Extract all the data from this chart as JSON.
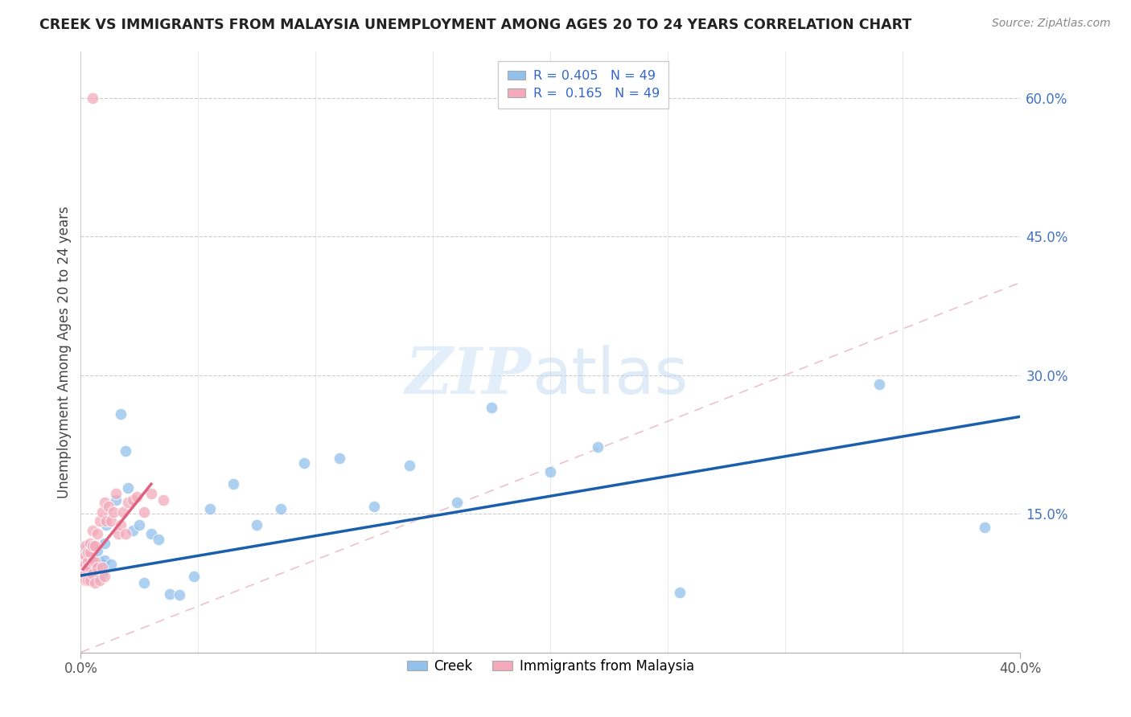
{
  "title": "CREEK VS IMMIGRANTS FROM MALAYSIA UNEMPLOYMENT AMONG AGES 20 TO 24 YEARS CORRELATION CHART",
  "source": "Source: ZipAtlas.com",
  "ylabel": "Unemployment Among Ages 20 to 24 years",
  "xlim": [
    0.0,
    0.4
  ],
  "ylim": [
    0.0,
    0.65
  ],
  "ytick_right_labels": [
    "60.0%",
    "45.0%",
    "30.0%",
    "15.0%"
  ],
  "ytick_right_values": [
    0.6,
    0.45,
    0.3,
    0.15
  ],
  "creek_color": "#92C1EB",
  "immigrant_color": "#F4AABB",
  "creek_line_color": "#1A5FAB",
  "immigrant_line_color": "#E06080",
  "diagonal_color": "#EAB8C0",
  "creek_R": 0.405,
  "creek_N": 49,
  "immigrant_R": 0.165,
  "immigrant_N": 49,
  "legend_labels": [
    "Creek",
    "Immigrants from Malaysia"
  ],
  "creek_x": [
    0.001,
    0.002,
    0.002,
    0.003,
    0.003,
    0.004,
    0.004,
    0.005,
    0.005,
    0.005,
    0.006,
    0.006,
    0.007,
    0.007,
    0.008,
    0.008,
    0.009,
    0.009,
    0.01,
    0.01,
    0.011,
    0.013,
    0.015,
    0.017,
    0.019,
    0.02,
    0.022,
    0.025,
    0.027,
    0.03,
    0.033,
    0.038,
    0.042,
    0.048,
    0.055,
    0.065,
    0.075,
    0.085,
    0.095,
    0.11,
    0.125,
    0.14,
    0.16,
    0.175,
    0.2,
    0.22,
    0.255,
    0.34,
    0.385
  ],
  "creek_y": [
    0.095,
    0.085,
    0.11,
    0.1,
    0.115,
    0.09,
    0.105,
    0.08,
    0.095,
    0.115,
    0.085,
    0.1,
    0.09,
    0.11,
    0.082,
    0.098,
    0.095,
    0.085,
    0.1,
    0.118,
    0.138,
    0.095,
    0.165,
    0.258,
    0.218,
    0.178,
    0.132,
    0.138,
    0.075,
    0.128,
    0.122,
    0.063,
    0.062,
    0.082,
    0.155,
    0.182,
    0.138,
    0.155,
    0.205,
    0.21,
    0.158,
    0.202,
    0.162,
    0.265,
    0.195,
    0.222,
    0.065,
    0.29,
    0.135
  ],
  "immigrant_x": [
    0.001,
    0.001,
    0.001,
    0.001,
    0.002,
    0.002,
    0.002,
    0.002,
    0.002,
    0.003,
    0.003,
    0.003,
    0.003,
    0.003,
    0.004,
    0.004,
    0.004,
    0.004,
    0.005,
    0.005,
    0.005,
    0.005,
    0.006,
    0.006,
    0.006,
    0.007,
    0.007,
    0.008,
    0.008,
    0.009,
    0.009,
    0.01,
    0.01,
    0.011,
    0.012,
    0.013,
    0.014,
    0.015,
    0.016,
    0.017,
    0.018,
    0.019,
    0.02,
    0.022,
    0.024,
    0.027,
    0.03,
    0.035,
    0.005
  ],
  "immigrant_y": [
    0.09,
    0.1,
    0.082,
    0.095,
    0.085,
    0.095,
    0.105,
    0.078,
    0.115,
    0.088,
    0.098,
    0.108,
    0.078,
    0.092,
    0.092,
    0.108,
    0.078,
    0.118,
    0.098,
    0.115,
    0.132,
    0.085,
    0.098,
    0.115,
    0.075,
    0.128,
    0.092,
    0.142,
    0.078,
    0.152,
    0.092,
    0.162,
    0.082,
    0.142,
    0.158,
    0.142,
    0.152,
    0.172,
    0.128,
    0.138,
    0.152,
    0.128,
    0.162,
    0.165,
    0.168,
    0.152,
    0.172,
    0.165,
    0.6
  ]
}
